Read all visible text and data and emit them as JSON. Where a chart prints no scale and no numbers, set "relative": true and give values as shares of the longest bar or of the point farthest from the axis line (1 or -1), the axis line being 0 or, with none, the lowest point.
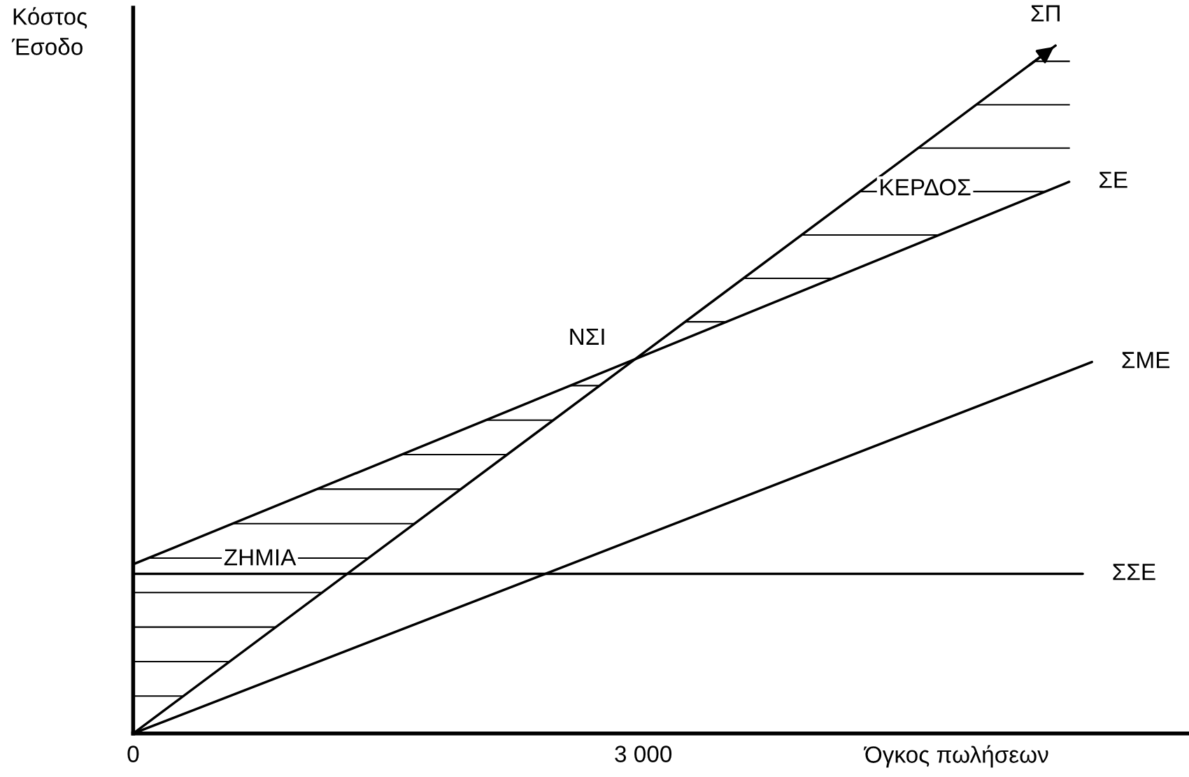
{
  "chart_data": {
    "type": "line",
    "relative": true,
    "ylabel": "Κόστος\nΈσοδο",
    "xlabel": "Όγκος πωλήσεων",
    "xlim": [
      0,
      6210
    ],
    "xticks": [
      0,
      {
        "value": 3000,
        "label": "3 000"
      }
    ],
    "grid": false,
    "legend": false,
    "marker": "none",
    "line_style": "solid",
    "tick_labels": "x",
    "series": [
      {
        "name": "ΣΠ",
        "color": "#000000",
        "x": [
          0,
          5425
        ],
        "values": [
          0,
          1
        ]
      },
      {
        "name": "ΣΕ",
        "color": "#000000",
        "x": [
          0,
          5505
        ],
        "values": [
          0.246,
          0.802
        ]
      },
      {
        "name": "ΣΜΕ",
        "color": "#000000",
        "x": [
          0,
          5639
        ],
        "values": [
          0,
          0.54
        ]
      },
      {
        "name": "ΣΣΕ",
        "color": "#000000",
        "x": [
          0,
          5585
        ],
        "values": [
          0.232,
          0.232
        ]
      }
    ],
    "annotations": [
      {
        "text": "ΝΣΙ",
        "x": 2953,
        "y": 0.544
      },
      "ΚΕΡΔΟΣ",
      "ΖΗΜΙΑ"
    ]
  }
}
